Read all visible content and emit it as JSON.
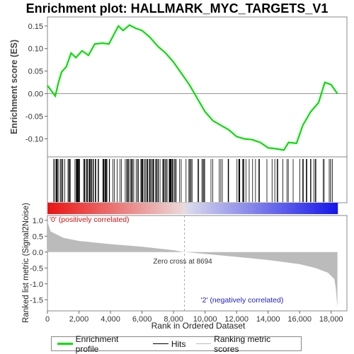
{
  "title": "Enrichment plot: HALLMARK_MYC_TARGETS_V1",
  "es_panel": {
    "ylabel": "Enrichment score (ES)",
    "yticks": [
      "-0.10",
      "-0.05",
      "0.00",
      "0.05",
      "0.10",
      "0.15"
    ]
  },
  "rank_panel": {
    "ylabel": "Ranked list metric (Signal2Noise)",
    "yticks": [
      "-1.5",
      "-1.0",
      "-0.5",
      "0.0",
      "0.5",
      "1.0"
    ],
    "xlabel": "Rank in Ordered Dataset",
    "xticks": [
      "0",
      "2,000",
      "4,000",
      "6,000",
      "8,000",
      "10,000",
      "12,000",
      "14,000",
      "16,000",
      "18,000"
    ],
    "zero_cross_label": "Zero cross at 8694",
    "pos_label": "'0' (positively correlated)",
    "neg_label": "'2' (negatively correlated)"
  },
  "legend": {
    "items": [
      "Enrichment profile",
      "Hits",
      "Ranking metric scores"
    ]
  },
  "colors": {
    "es_line": "#00e000",
    "hits": "#000000",
    "metric": "#bbbbbb",
    "pos_bar": "#e00000",
    "neg_bar": "#1010d0"
  },
  "chart_data": {
    "type": "line",
    "n_genes": 18400,
    "zero_cross": 8694,
    "es_profile": {
      "x": [
        0,
        500,
        700,
        900,
        1200,
        1500,
        1800,
        2200,
        2600,
        3000,
        3500,
        3900,
        4200,
        4500,
        4800,
        5200,
        5600,
        6000,
        6500,
        7000,
        7500,
        8000,
        8500,
        9000,
        9500,
        10000,
        10500,
        11000,
        11500,
        12000,
        12500,
        13000,
        13500,
        14000,
        14500,
        15000,
        15300,
        15800,
        16200,
        16700,
        17200,
        17600,
        18000,
        18400
      ],
      "y": [
        0.018,
        -0.005,
        0.025,
        0.048,
        0.06,
        0.09,
        0.08,
        0.095,
        0.085,
        0.11,
        0.112,
        0.11,
        0.13,
        0.15,
        0.14,
        0.152,
        0.145,
        0.14,
        0.125,
        0.105,
        0.09,
        0.07,
        0.045,
        0.02,
        -0.01,
        -0.04,
        -0.06,
        -0.07,
        -0.08,
        -0.095,
        -0.1,
        -0.102,
        -0.108,
        -0.12,
        -0.122,
        -0.125,
        -0.108,
        -0.11,
        -0.07,
        -0.04,
        -0.02,
        0.025,
        0.02,
        0.0
      ]
    },
    "metric_profile": {
      "x": [
        0,
        200,
        1000,
        2000,
        4000,
        6000,
        8000,
        8694,
        10000,
        12000,
        14000,
        16000,
        17000,
        17800,
        18200,
        18300,
        18400
      ],
      "y": [
        0.95,
        0.65,
        0.45,
        0.35,
        0.25,
        0.17,
        0.06,
        0.0,
        -0.06,
        -0.15,
        -0.25,
        -0.38,
        -0.5,
        -0.65,
        -0.85,
        -1.15,
        -1.75
      ]
    },
    "es_ylim": [
      -0.14,
      0.17
    ],
    "metric_ylim": [
      -1.85,
      1.15
    ],
    "xlim": [
      0,
      19000
    ]
  }
}
